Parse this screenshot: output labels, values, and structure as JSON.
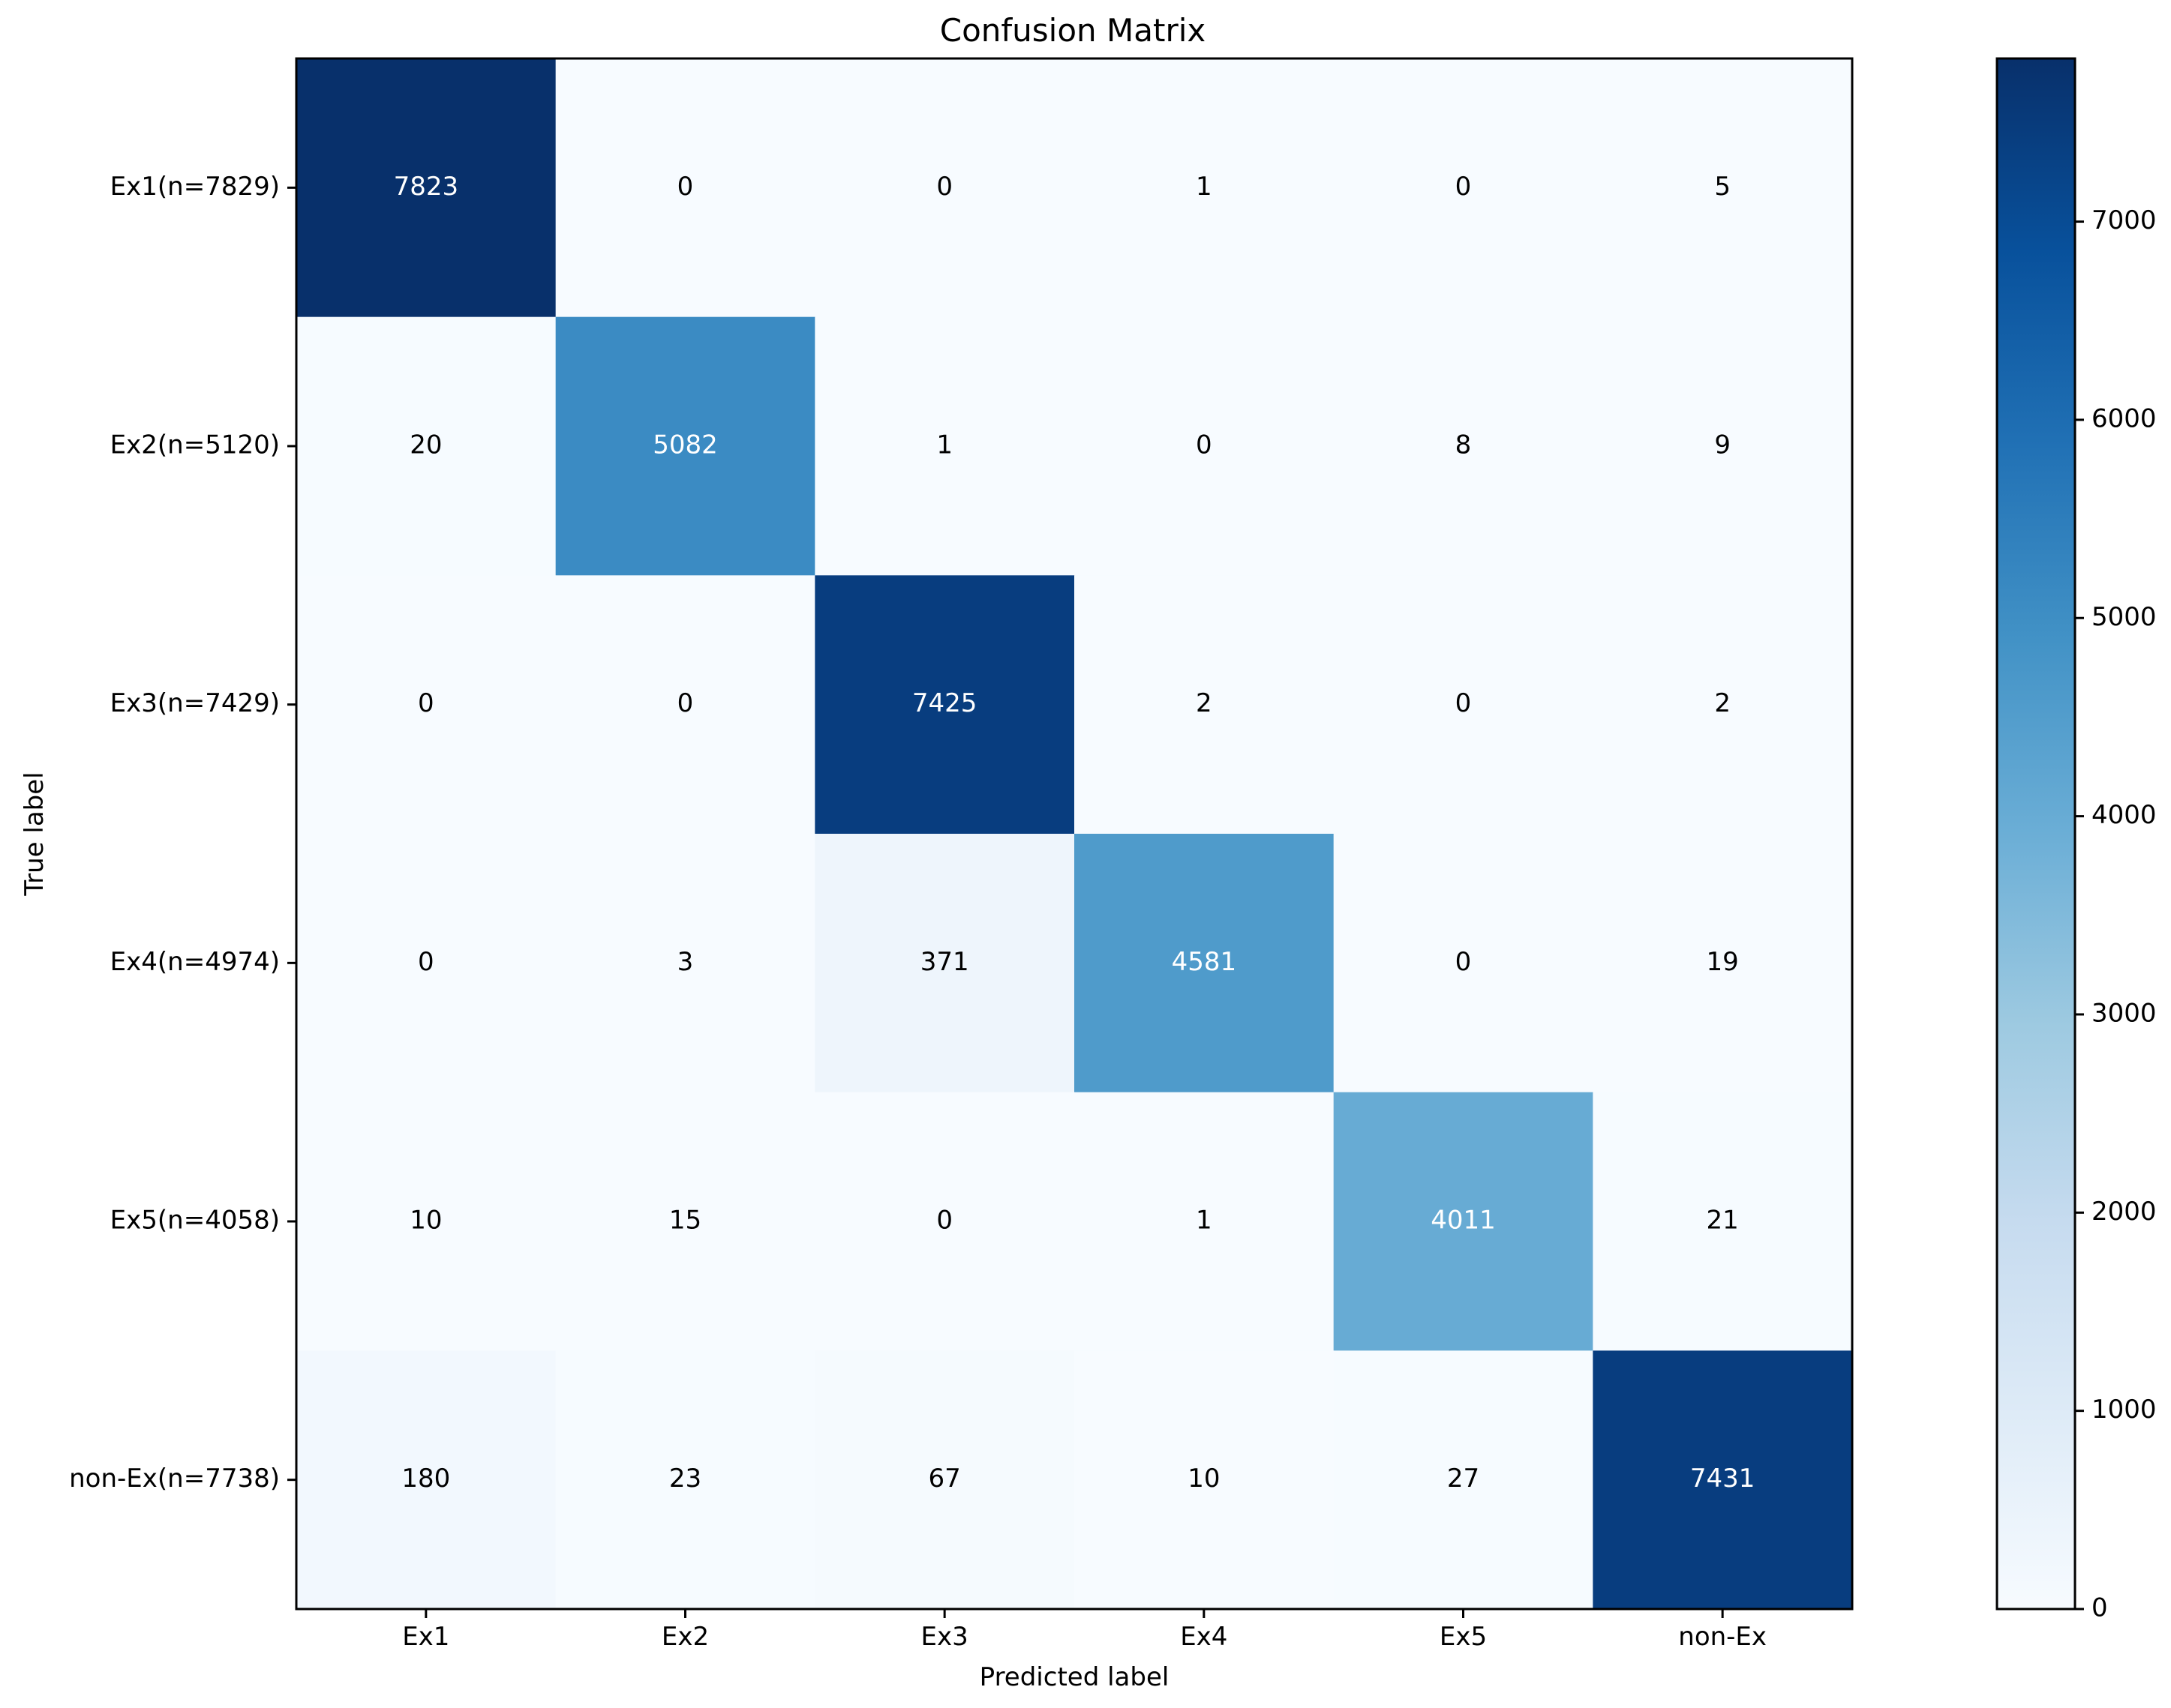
{
  "chart_data": {
    "type": "heatmap",
    "title": "Confusion Matrix",
    "xlabel": "Predicted label",
    "ylabel": "True label",
    "x_categories": [
      "Ex1",
      "Ex2",
      "Ex3",
      "Ex4",
      "Ex5",
      "non-Ex"
    ],
    "y_categories": [
      "Ex1(n=7829)",
      "Ex2(n=5120)",
      "Ex3(n=7429)",
      "Ex4(n=4974)",
      "Ex5(n=4058)",
      "non-Ex(n=7738)"
    ],
    "values": [
      [
        7823,
        0,
        0,
        1,
        0,
        5
      ],
      [
        20,
        5082,
        1,
        0,
        8,
        9
      ],
      [
        0,
        0,
        7425,
        2,
        0,
        2
      ],
      [
        0,
        3,
        371,
        4581,
        0,
        19
      ],
      [
        10,
        15,
        0,
        1,
        4011,
        21
      ],
      [
        180,
        23,
        67,
        10,
        27,
        7431
      ]
    ],
    "colormap": "Blues",
    "colorbar": {
      "min": 0,
      "max": 7823,
      "ticks": [
        0,
        1000,
        2000,
        3000,
        4000,
        5000,
        6000,
        7000
      ]
    },
    "text_colors": {
      "dark_cell": "#ffffff",
      "light_cell": "#000000"
    },
    "grid": false,
    "legend": "colorbar-right"
  }
}
